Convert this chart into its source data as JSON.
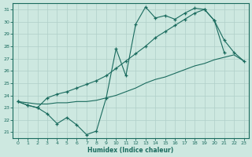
{
  "xlabel": "Humidex (Indice chaleur)",
  "bg_color": "#cde8e0",
  "line_color": "#1a6b5e",
  "grid_color": "#b0cfc8",
  "xlim": [
    -0.5,
    23.5
  ],
  "ylim": [
    20.5,
    31.5
  ],
  "xticks": [
    0,
    1,
    2,
    3,
    4,
    5,
    6,
    7,
    8,
    9,
    10,
    11,
    12,
    13,
    14,
    15,
    16,
    17,
    18,
    19,
    20,
    21,
    22,
    23
  ],
  "yticks": [
    21,
    22,
    23,
    24,
    25,
    26,
    27,
    28,
    29,
    30,
    31
  ],
  "line1_x": [
    0,
    1,
    2,
    3,
    4,
    5,
    6,
    7,
    8,
    9,
    10,
    11,
    12,
    13,
    14,
    15,
    16,
    17,
    18,
    19,
    20,
    21
  ],
  "line1_y": [
    23.5,
    23.2,
    23.0,
    22.5,
    21.7,
    22.2,
    21.6,
    20.8,
    21.1,
    23.8,
    27.8,
    25.6,
    29.8,
    31.2,
    30.3,
    30.5,
    30.2,
    30.7,
    31.1,
    31.0,
    30.1,
    27.5
  ],
  "line2_x": [
    0,
    1,
    2,
    3,
    4,
    5,
    6,
    7,
    8,
    9,
    10,
    11,
    12,
    13,
    14,
    15,
    16,
    17,
    18,
    19,
    20,
    21,
    22,
    23
  ],
  "line2_y": [
    23.5,
    23.4,
    23.3,
    23.3,
    23.4,
    23.4,
    23.5,
    23.5,
    23.6,
    23.8,
    24.0,
    24.3,
    24.6,
    25.0,
    25.3,
    25.5,
    25.8,
    26.1,
    26.4,
    26.6,
    26.9,
    27.1,
    27.3,
    26.8
  ],
  "line3_x": [
    0,
    1,
    2,
    3,
    4,
    5,
    6,
    7,
    8,
    9,
    10,
    11,
    12,
    13,
    14,
    15,
    16,
    17,
    18,
    19,
    20,
    21,
    22,
    23
  ],
  "line3_y": [
    23.5,
    23.2,
    23.0,
    23.8,
    24.1,
    24.3,
    24.6,
    24.9,
    25.2,
    25.6,
    26.2,
    26.8,
    27.4,
    28.0,
    28.7,
    29.2,
    29.7,
    30.2,
    30.7,
    31.0,
    30.1,
    28.5,
    27.5,
    26.8
  ]
}
